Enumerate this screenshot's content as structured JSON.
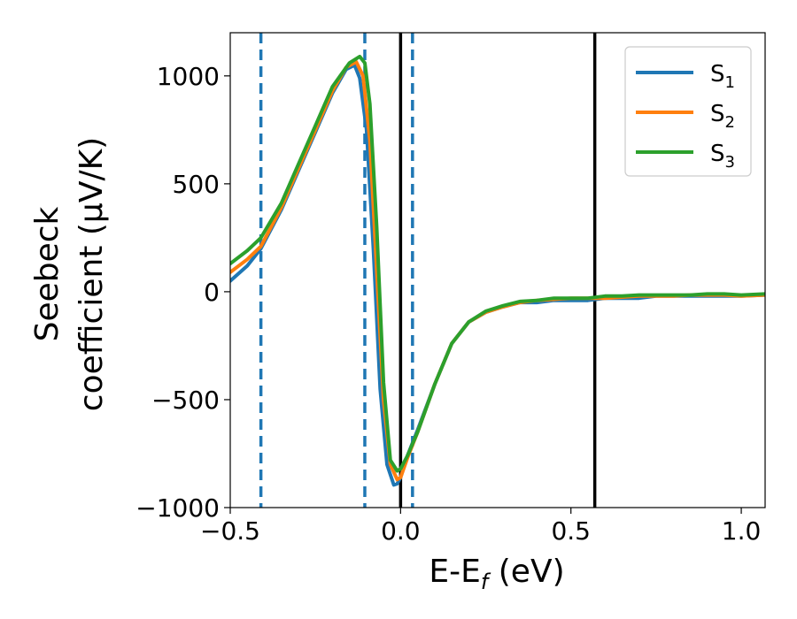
{
  "chart_data": {
    "type": "line",
    "xlabel": "E-E",
    "xlabel_sub": "f",
    "xlabel_unit": " (eV)",
    "ylabel_line1": "Seebeck",
    "ylabel_line2": "coefficient  (μV/K)",
    "xlim": [
      -0.5,
      1.07
    ],
    "ylim": [
      -1000,
      1200
    ],
    "x_ticks": [
      -0.5,
      0.0,
      0.5,
      1.0
    ],
    "x_tick_labels": [
      "−0.5",
      "0.0",
      "0.5",
      "1.0"
    ],
    "y_ticks": [
      -1000,
      -500,
      0,
      500,
      1000
    ],
    "y_tick_labels": [
      "−1000",
      "−500",
      "0",
      "500",
      "1000"
    ],
    "grid": false,
    "legend_position": "top-right",
    "vlines_dashed": {
      "color": "#1f77b4",
      "x": [
        -0.41,
        -0.105,
        0.035
      ]
    },
    "vlines_solid": {
      "color": "#000000",
      "x": [
        0.0,
        0.57
      ]
    },
    "series": [
      {
        "name": "S",
        "sub": "1",
        "color": "#1f77b4",
        "x": [
          -0.5,
          -0.45,
          -0.41,
          -0.35,
          -0.3,
          -0.25,
          -0.2,
          -0.16,
          -0.135,
          -0.12,
          -0.1,
          -0.08,
          -0.06,
          -0.04,
          -0.02,
          -0.01,
          0.0,
          0.02,
          0.05,
          0.1,
          0.15,
          0.2,
          0.25,
          0.3,
          0.35,
          0.4,
          0.45,
          0.5,
          0.55,
          0.6,
          0.65,
          0.7,
          0.75,
          0.8,
          0.85,
          0.9,
          0.95,
          1.0,
          1.07
        ],
        "y": [
          50,
          120,
          200,
          380,
          560,
          740,
          920,
          1030,
          1050,
          990,
          750,
          200,
          -450,
          -800,
          -895,
          -890,
          -860,
          -760,
          -640,
          -430,
          -240,
          -140,
          -95,
          -70,
          -50,
          -50,
          -40,
          -40,
          -40,
          -30,
          -30,
          -30,
          -20,
          -20,
          -20,
          -20,
          -20,
          -20,
          -15
        ]
      },
      {
        "name": "S",
        "sub": "2",
        "color": "#ff7f0e",
        "x": [
          -0.5,
          -0.45,
          -0.41,
          -0.35,
          -0.3,
          -0.25,
          -0.2,
          -0.16,
          -0.13,
          -0.11,
          -0.09,
          -0.07,
          -0.05,
          -0.03,
          -0.01,
          0.0,
          0.02,
          0.05,
          0.1,
          0.15,
          0.2,
          0.25,
          0.3,
          0.35,
          0.4,
          0.45,
          0.5,
          0.55,
          0.6,
          0.65,
          0.7,
          0.75,
          0.8,
          0.85,
          0.9,
          0.95,
          1.0,
          1.07
        ],
        "y": [
          90,
          150,
          210,
          390,
          570,
          750,
          930,
          1040,
          1065,
          1000,
          700,
          100,
          -500,
          -800,
          -870,
          -860,
          -770,
          -650,
          -430,
          -240,
          -140,
          -95,
          -70,
          -50,
          -40,
          -35,
          -30,
          -30,
          -30,
          -25,
          -20,
          -20,
          -20,
          -15,
          -15,
          -15,
          -20,
          -15
        ]
      },
      {
        "name": "S",
        "sub": "3",
        "color": "#2ca02c",
        "x": [
          -0.5,
          -0.45,
          -0.41,
          -0.35,
          -0.3,
          -0.25,
          -0.2,
          -0.15,
          -0.12,
          -0.105,
          -0.09,
          -0.07,
          -0.05,
          -0.03,
          -0.01,
          0.0,
          0.02,
          0.05,
          0.1,
          0.15,
          0.2,
          0.25,
          0.3,
          0.35,
          0.4,
          0.45,
          0.5,
          0.55,
          0.6,
          0.65,
          0.7,
          0.75,
          0.8,
          0.85,
          0.9,
          0.95,
          1.0,
          1.07
        ],
        "y": [
          130,
          190,
          250,
          410,
          590,
          770,
          950,
          1060,
          1090,
          1060,
          870,
          300,
          -420,
          -780,
          -830,
          -820,
          -760,
          -650,
          -430,
          -240,
          -140,
          -90,
          -65,
          -45,
          -40,
          -30,
          -30,
          -30,
          -20,
          -20,
          -15,
          -15,
          -15,
          -15,
          -10,
          -10,
          -15,
          -10
        ]
      }
    ]
  }
}
